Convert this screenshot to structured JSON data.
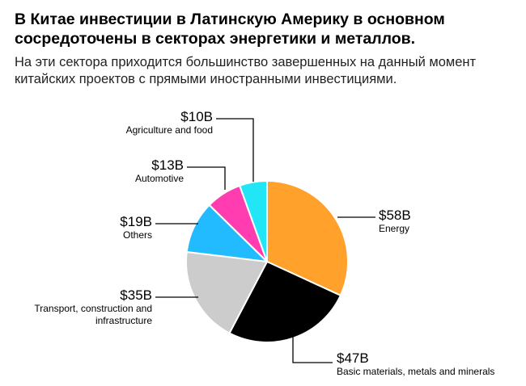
{
  "title": "В Китае инвестиции в Латинскую Америку в основном сосредоточены в секторах энергетики и металлов.",
  "subtitle": "На эти сектора приходится большинство завершенных на данный момент китайских проектов с прямыми иностранными инвестициями.",
  "chart_data": {
    "type": "pie",
    "unit": "USD billions",
    "start": "12 o'clock, clockwise",
    "categories": [
      "Energy",
      "Basic materials, metals and minerals",
      "Transport, construction and infrastructure",
      "Others",
      "Automotive",
      "Agriculture and food"
    ],
    "values": [
      58,
      47,
      35,
      19,
      13,
      10
    ],
    "value_labels": [
      "$58B",
      "$47B",
      "$35B",
      "$19B",
      "$13B",
      "$10B"
    ],
    "label_lines": [
      [
        "Energy"
      ],
      [
        "Basic materials, metals and minerals"
      ],
      [
        "Transport, construction and",
        "infrastructure"
      ],
      [
        "Others"
      ],
      [
        "Automotive"
      ],
      [
        "Agriculture and food"
      ]
    ],
    "colors": [
      "#FFA12B",
      "#000000",
      "#CCCCCC",
      "#22BBFF",
      "#FF3DB0",
      "#22E5F5"
    ]
  }
}
